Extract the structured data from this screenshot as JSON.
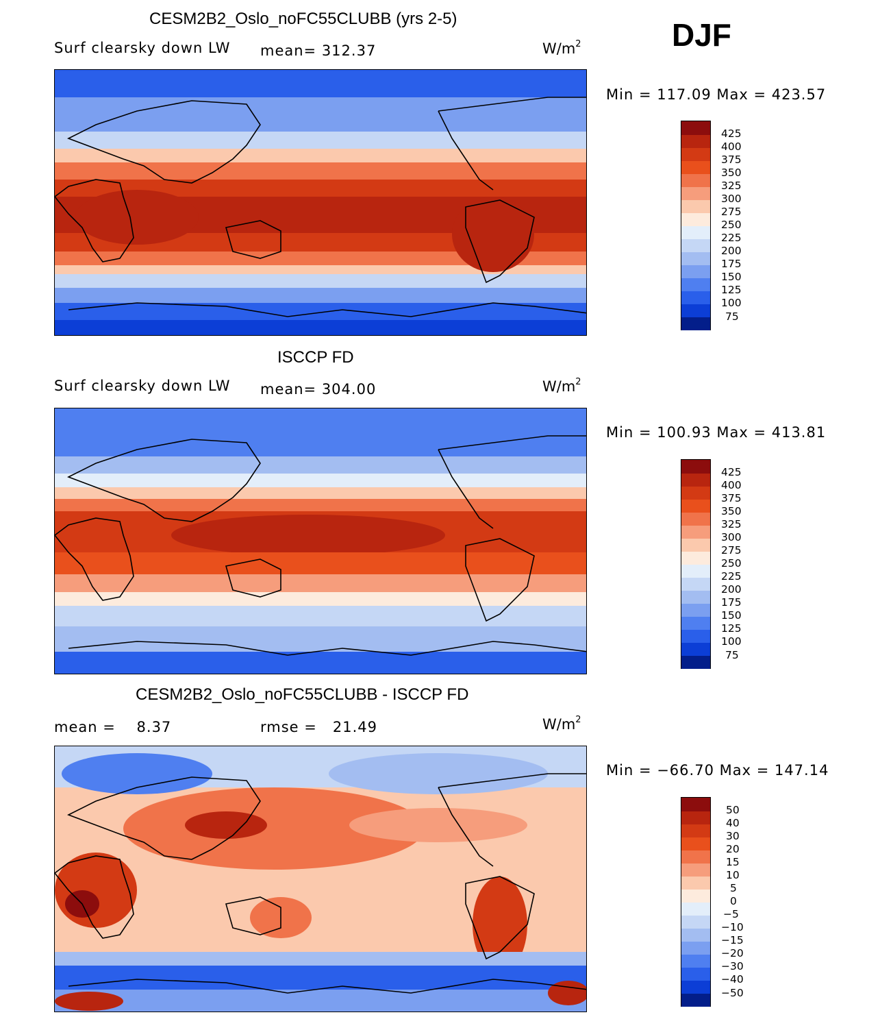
{
  "season": "DJF",
  "panels": [
    {
      "title": "CESM2B2_Oslo_noFC55CLUBB (yrs 2-5)",
      "variable": "Surf clearsky down LW",
      "stat": "mean= 312.37",
      "unit": "W/m",
      "unit_exp": "2",
      "minmax": "Min = 117.09 Max = 423.57",
      "levels": [
        "425",
        "400",
        "375",
        "350",
        "325",
        "300",
        "275",
        "250",
        "225",
        "200",
        "175",
        "150",
        "125",
        "100",
        "75"
      ]
    },
    {
      "title": "ISCCP FD",
      "variable": "Surf clearsky down LW",
      "stat": "mean= 304.00",
      "unit": "W/m",
      "unit_exp": "2",
      "minmax": "Min = 100.93 Max = 413.81",
      "levels": [
        "425",
        "400",
        "375",
        "350",
        "325",
        "300",
        "275",
        "250",
        "225",
        "200",
        "175",
        "150",
        "125",
        "100",
        "75"
      ]
    },
    {
      "title": "CESM2B2_Oslo_noFC55CLUBB - ISCCP FD",
      "mean_label": "mean =    8.37",
      "rmse_label": "rmse =   21.49",
      "unit": "W/m",
      "unit_exp": "2",
      "minmax": "Min = −66.70 Max = 147.14",
      "levels": [
        "50",
        "40",
        "30",
        "20",
        "15",
        "10",
        "5",
        "0",
        "−5",
        "−10",
        "−15",
        "−20",
        "−30",
        "−40",
        "−50"
      ]
    }
  ],
  "colors": {
    "scale": [
      "#8c0d0d",
      "#b8250f",
      "#d33a14",
      "#e9501c",
      "#f0734a",
      "#f69d7c",
      "#fbc9ad",
      "#fdebdd",
      "#e3eefa",
      "#c5d7f5",
      "#a3bdf1",
      "#7b9ff0",
      "#4f7ff0",
      "#2a5fea",
      "#0c3ed6",
      "#052cb0",
      "#031e8a"
    ]
  }
}
